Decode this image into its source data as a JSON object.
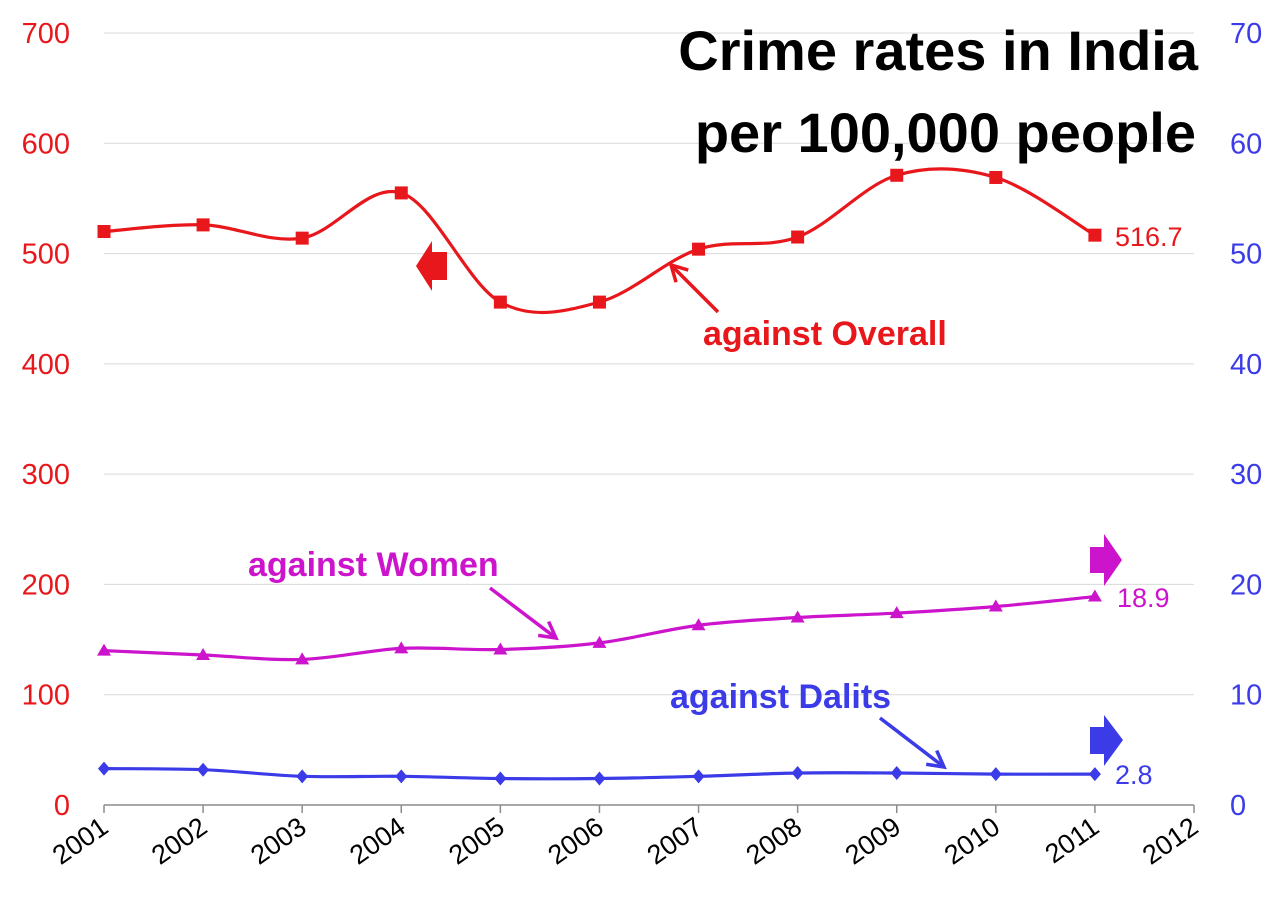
{
  "chart_data": {
    "type": "line",
    "title_lines": [
      "Crime rates in India",
      "per 100,000 people"
    ],
    "x": [
      2001,
      2002,
      2003,
      2004,
      2005,
      2006,
      2007,
      2008,
      2009,
      2010,
      2011
    ],
    "x_ticks": [
      2001,
      2002,
      2003,
      2004,
      2005,
      2006,
      2007,
      2008,
      2009,
      2010,
      2011,
      2012
    ],
    "xlim": [
      2001,
      2012
    ],
    "y_left": {
      "ticks": [
        0,
        100,
        200,
        300,
        400,
        500,
        600,
        700
      ],
      "ylim": [
        0,
        700
      ],
      "color": "#e8171c"
    },
    "y_right": {
      "ticks": [
        0,
        10,
        20,
        30,
        40,
        50,
        60,
        70
      ],
      "ylim": [
        0,
        70
      ],
      "color": "#3b3be8"
    },
    "grid": "horizontal",
    "series": [
      {
        "name": "against Overall",
        "axis": "left",
        "color": "#e8171c",
        "marker": "square",
        "values": [
          520,
          526,
          514,
          555,
          456,
          456,
          504,
          515,
          571,
          569,
          516.7
        ],
        "end_label": "516.7"
      },
      {
        "name": "against Women",
        "axis": "right",
        "color": "#cc14cc",
        "marker": "triangle",
        "values": [
          14.0,
          13.6,
          13.2,
          14.2,
          14.1,
          14.7,
          16.3,
          17.0,
          17.4,
          18.0,
          18.9
        ],
        "end_label": "18.9"
      },
      {
        "name": "against Dalits",
        "axis": "right",
        "color": "#3b3be8",
        "marker": "diamond",
        "values": [
          3.3,
          3.2,
          2.6,
          2.6,
          2.4,
          2.4,
          2.6,
          2.9,
          2.9,
          2.8,
          2.8
        ],
        "end_label": "2.8"
      }
    ]
  }
}
